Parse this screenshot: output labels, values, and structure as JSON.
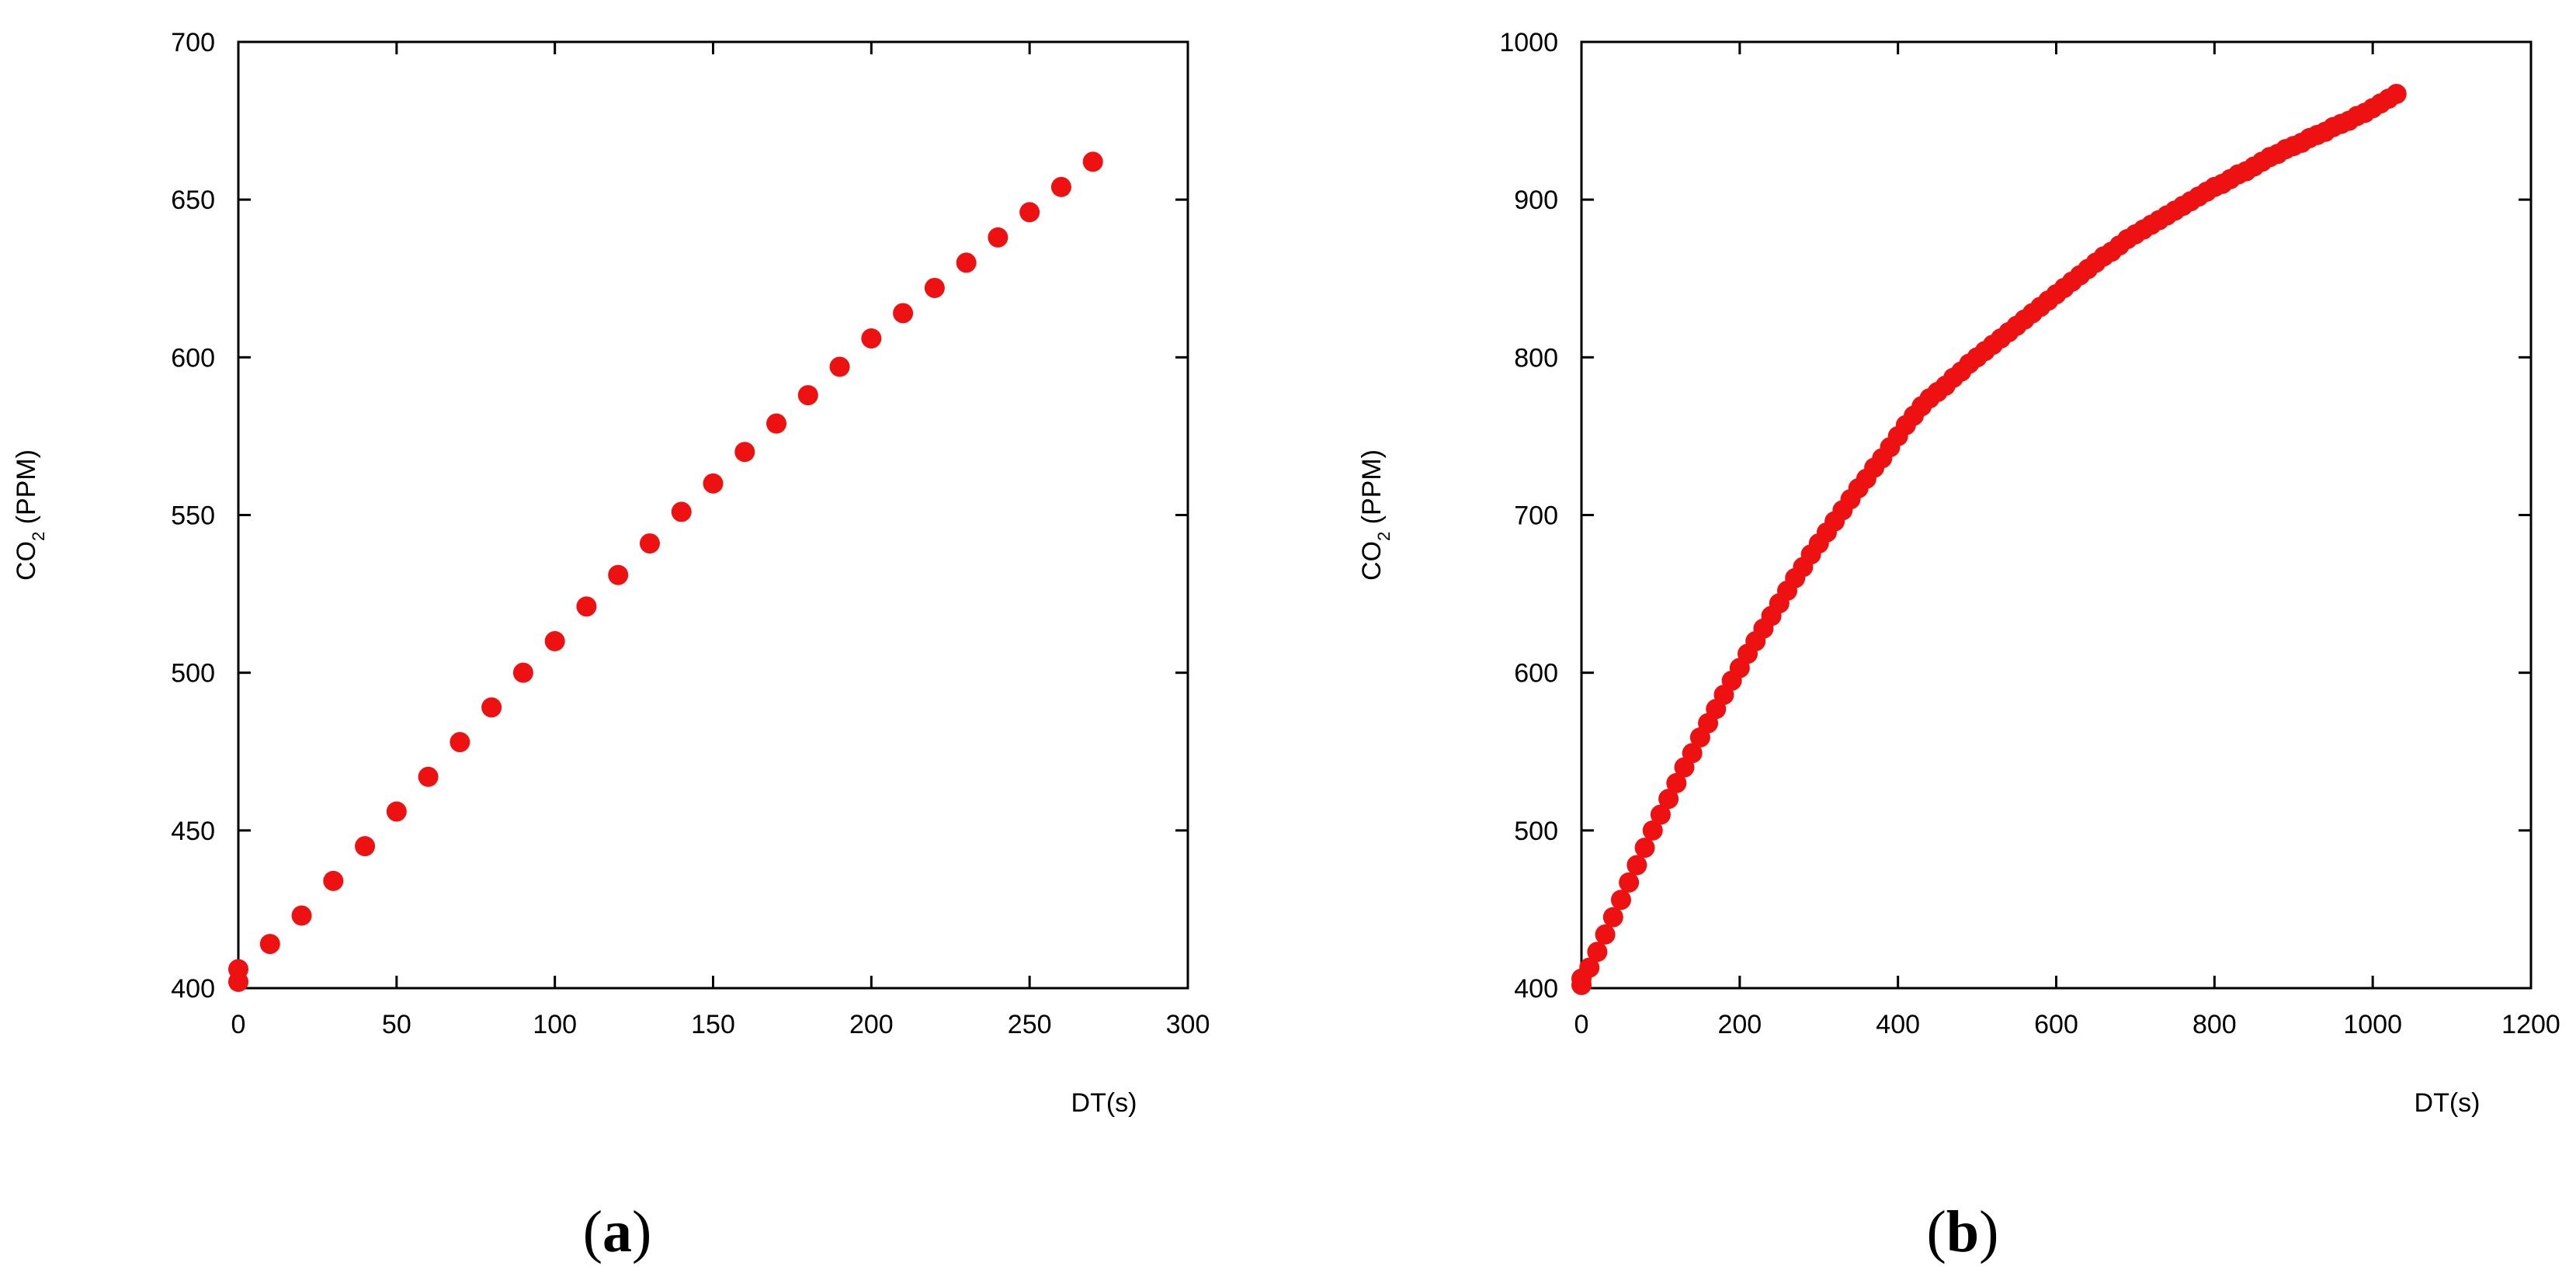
{
  "chart_data": [
    {
      "panel_label": "a",
      "type": "scatter",
      "xlabel": "DT(s)",
      "ylabel": "CO2 (PPM)",
      "ylabel_main": "CO",
      "ylabel_sub": "2",
      "ylabel_unit": " (PPM)",
      "xlim": [
        0,
        300
      ],
      "ylim": [
        400,
        700
      ],
      "xticks": [
        0,
        50,
        100,
        150,
        200,
        250,
        300
      ],
      "yticks": [
        400,
        450,
        500,
        550,
        600,
        650,
        700
      ],
      "grid": false,
      "marker_color": "#ee1111",
      "series": [
        {
          "x": [
            0,
            0,
            10,
            20,
            30,
            40,
            50,
            60,
            70,
            80,
            90,
            100,
            110,
            120,
            130,
            140,
            150,
            160,
            170,
            180,
            190,
            200,
            210,
            220,
            230,
            240,
            250,
            260,
            270
          ],
          "y": [
            402,
            406,
            414,
            423,
            434,
            445,
            456,
            467,
            478,
            489,
            500,
            510,
            521,
            531,
            541,
            551,
            560,
            570,
            579,
            588,
            597,
            606,
            614,
            622,
            630,
            638,
            646,
            654,
            662
          ]
        }
      ]
    },
    {
      "panel_label": "b",
      "type": "scatter",
      "xlabel": "DT(s)",
      "ylabel": "CO2 (PPM)",
      "ylabel_main": "CO",
      "ylabel_sub": "2",
      "ylabel_unit": " (PPM)",
      "xlim": [
        0,
        1200
      ],
      "ylim": [
        400,
        1000
      ],
      "xticks": [
        0,
        200,
        400,
        600,
        800,
        1000,
        1200
      ],
      "yticks": [
        400,
        500,
        600,
        700,
        800,
        900,
        1000
      ],
      "grid": false,
      "marker_color": "#ee1111",
      "series": [
        {
          "x": [
            0,
            0,
            10,
            20,
            30,
            40,
            50,
            60,
            70,
            80,
            90,
            100,
            110,
            120,
            130,
            140,
            150,
            160,
            170,
            180,
            190,
            200,
            210,
            220,
            230,
            240,
            250,
            260,
            270,
            280,
            290,
            300,
            310,
            320,
            330,
            340,
            350,
            360,
            370,
            380,
            390,
            400,
            410,
            420,
            430,
            440,
            450,
            460,
            470,
            480,
            490,
            500,
            510,
            520,
            530,
            540,
            550,
            560,
            570,
            580,
            590,
            600,
            610,
            620,
            630,
            640,
            650,
            660,
            670,
            680,
            690,
            700,
            710,
            720,
            730,
            740,
            750,
            760,
            770,
            780,
            790,
            800,
            810,
            820,
            830,
            840,
            850,
            860,
            870,
            880,
            890,
            900,
            910,
            920,
            930,
            940,
            950,
            960,
            970,
            980,
            990,
            1000,
            1010,
            1020,
            1030
          ],
          "y": [
            402,
            406,
            413,
            423,
            434,
            445,
            456,
            467,
            478,
            489,
            500,
            510,
            520,
            530,
            540,
            549,
            559,
            568,
            577,
            586,
            595,
            603,
            612,
            620,
            628,
            636,
            644,
            652,
            660,
            667,
            675,
            682,
            689,
            696,
            703,
            710,
            717,
            723,
            730,
            736,
            743,
            750,
            757,
            763,
            769,
            774,
            778,
            782,
            787,
            791,
            796,
            800,
            804,
            808,
            812,
            816,
            820,
            824,
            828,
            832,
            836,
            840,
            844,
            848,
            852,
            856,
            860,
            864,
            867,
            871,
            875,
            878,
            881,
            884,
            887,
            890,
            893,
            896,
            899,
            902,
            905,
            908,
            910,
            913,
            916,
            918,
            921,
            924,
            927,
            929,
            932,
            934,
            936,
            939,
            941,
            943,
            946,
            948,
            950,
            953,
            955,
            958,
            961,
            964,
            967
          ]
        }
      ]
    }
  ]
}
